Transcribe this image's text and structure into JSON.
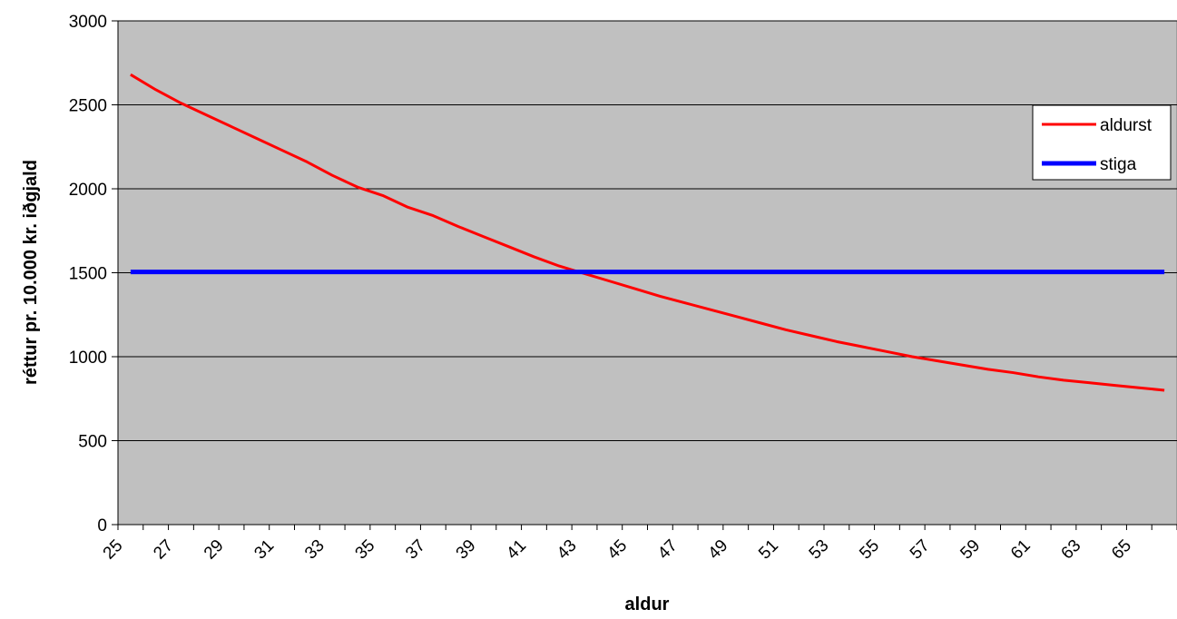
{
  "chart_data": {
    "type": "line",
    "title": "",
    "xlabel": "aldur",
    "ylabel": "réttur pr. 10.000 kr. iðgjald",
    "xlim": [
      25,
      67
    ],
    "ylim": [
      0,
      3000
    ],
    "y_ticks": [
      0,
      500,
      1000,
      1500,
      2000,
      2500,
      3000
    ],
    "x_tick_labels": [
      "25",
      "27",
      "29",
      "31",
      "33",
      "35",
      "37",
      "39",
      "41",
      "43",
      "45",
      "47",
      "49",
      "51",
      "53",
      "55",
      "57",
      "59",
      "61",
      "63",
      "65"
    ],
    "grid": "horizontal",
    "plot_background": "#c0c0c0",
    "legend_position": "right",
    "x": [
      25,
      26,
      27,
      28,
      29,
      30,
      31,
      32,
      33,
      34,
      35,
      36,
      37,
      38,
      39,
      40,
      41,
      42,
      43,
      44,
      45,
      46,
      47,
      48,
      49,
      50,
      51,
      52,
      53,
      54,
      55,
      56,
      57,
      58,
      59,
      60,
      61,
      62,
      63,
      64,
      65,
      66
    ],
    "series": [
      {
        "name": "aldurst",
        "color": "#ff0000",
        "values": [
          2680,
          2590,
          2510,
          2440,
          2370,
          2300,
          2230,
          2160,
          2080,
          2010,
          1960,
          1890,
          1840,
          1775,
          1715,
          1655,
          1595,
          1540,
          1495,
          1450,
          1405,
          1360,
          1320,
          1280,
          1240,
          1200,
          1160,
          1125,
          1090,
          1060,
          1030,
          1000,
          975,
          950,
          925,
          905,
          880,
          860,
          845,
          830,
          815,
          800
        ]
      },
      {
        "name": "stiga",
        "color": "#0000ff",
        "values": [
          1505,
          1505,
          1505,
          1505,
          1505,
          1505,
          1505,
          1505,
          1505,
          1505,
          1505,
          1505,
          1505,
          1505,
          1505,
          1505,
          1505,
          1505,
          1505,
          1505,
          1505,
          1505,
          1505,
          1505,
          1505,
          1505,
          1505,
          1505,
          1505,
          1505,
          1505,
          1505,
          1505,
          1505,
          1505,
          1505,
          1505,
          1505,
          1505,
          1505,
          1505,
          1505
        ]
      }
    ]
  }
}
